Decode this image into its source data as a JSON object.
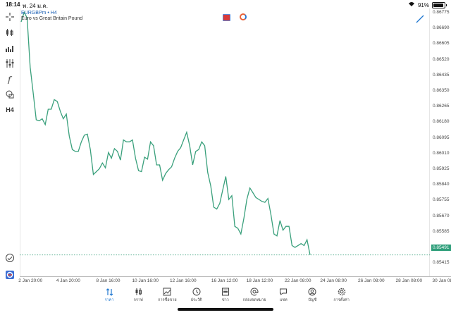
{
  "status_bar": {
    "time": "18:14",
    "date": "พ. 24 ม.ค.",
    "battery": "91%"
  },
  "symbol": {
    "name": "EURGBPm",
    "timeframe": "H4",
    "description": "Euro vs Great Britain Pound"
  },
  "left_tools": [
    {
      "name": "crosshair-icon"
    },
    {
      "name": "chart-type-icon"
    },
    {
      "name": "volume-icon"
    },
    {
      "name": "indicators-icon"
    },
    {
      "name": "function-icon"
    },
    {
      "name": "objects-icon"
    },
    {
      "name": "timeframe-label",
      "label": "H4"
    }
  ],
  "price_axis": [
    "0.86775",
    "0.86690",
    "0.86605",
    "0.86520",
    "0.86435",
    "0.86350",
    "0.86265",
    "0.86180",
    "0.86095",
    "0.86010",
    "0.85925",
    "0.85840",
    "0.85755",
    "0.85670",
    "0.85585",
    "0.85500",
    "0.85415"
  ],
  "current_price": "0.85491",
  "time_axis": [
    "2 Jan 20:00",
    "4 Jan 20:00",
    "8 Jan 16:00",
    "10 Jan 16:00",
    "12 Jan 16:00",
    "16 Jan 12:00",
    "18 Jan 12:00",
    "22 Jan 08:00",
    "24 Jan 08:00",
    "26 Jan 08:00",
    "28 Jan 08:00",
    "30 Jan 08:00"
  ],
  "colors": {
    "line": "#3aa07c",
    "active": "#1f77d0",
    "price_tag": "#2e9e7a"
  },
  "chart_data": {
    "type": "line",
    "title": "",
    "series": [
      {
        "values": [
          0.86705,
          0.86755,
          0.86725,
          0.8647,
          0.86335,
          0.86195,
          0.8619,
          0.862,
          0.8617,
          0.8625,
          0.8625,
          0.863,
          0.8629,
          0.8624,
          0.862,
          0.86225,
          0.8611,
          0.8604,
          0.8603,
          0.8603,
          0.8608,
          0.86115,
          0.8612,
          0.8604,
          0.8591,
          0.85925,
          0.8594,
          0.8597,
          0.85945,
          0.86025,
          0.85995,
          0.86045,
          0.8603,
          0.85985,
          0.8609,
          0.8608,
          0.8608,
          0.8609,
          0.85995,
          0.8593,
          0.85925,
          0.86,
          0.8599,
          0.8608,
          0.8606,
          0.8596,
          0.8596,
          0.8588,
          0.85915,
          0.85935,
          0.8595,
          0.85995,
          0.8603,
          0.8605,
          0.8609,
          0.8613,
          0.8606,
          0.8596,
          0.8603,
          0.8604,
          0.8608,
          0.8606,
          0.8592,
          0.8585,
          0.8574,
          0.8573,
          0.8576,
          0.8583,
          0.859,
          0.8578,
          0.858,
          0.8564,
          0.8563,
          0.856,
          0.8568,
          0.8578,
          0.8584,
          0.85815,
          0.8579,
          0.8578,
          0.8577,
          0.85765,
          0.85785,
          0.857,
          0.856,
          0.8559,
          0.8567,
          0.8562,
          0.8564,
          0.8564,
          0.8554,
          0.8553,
          0.8554,
          0.8555,
          0.8554,
          0.8557,
          0.85491
        ]
      }
    ],
    "ylim": [
      0.8538,
      0.86775
    ]
  },
  "tabs": [
    {
      "label": "ราคา",
      "icon": "quotes-icon",
      "active": true
    },
    {
      "label": "กราฟ",
      "icon": "chart-icon",
      "active": false
    },
    {
      "label": "การซื้อขาย",
      "icon": "trade-icon",
      "active": false
    },
    {
      "label": "ประวัติ",
      "icon": "history-icon",
      "active": false
    },
    {
      "label": "ข่าว",
      "icon": "news-icon",
      "active": false
    },
    {
      "label": "กล่องจดหมาย",
      "icon": "mailbox-icon",
      "active": false
    },
    {
      "label": "แชท",
      "icon": "chat-icon",
      "active": false
    },
    {
      "label": "บัญชี",
      "icon": "account-icon",
      "active": false
    },
    {
      "label": "การตั้งค่า",
      "icon": "settings-icon",
      "active": false
    }
  ]
}
